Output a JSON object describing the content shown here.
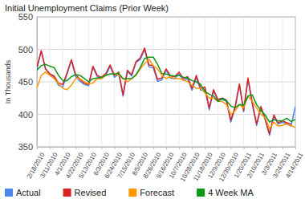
{
  "chart_data": {
    "type": "line",
    "title": "Initial Unemployment Claims (Prior Week)",
    "ylabel": "In Thousands",
    "categories": [
      "2/18/2010",
      null,
      null,
      "3/11/2010",
      null,
      null,
      "4/1/2010",
      null,
      null,
      "4/22/2010",
      null,
      null,
      "5/13/2010",
      null,
      null,
      "6/3/2010",
      null,
      null,
      "6/24/2010",
      null,
      null,
      "7/15/2010",
      null,
      null,
      "8/5/2010",
      null,
      null,
      "8/26/2010",
      null,
      null,
      "9/16/2010",
      null,
      null,
      "10/7/2010",
      null,
      null,
      "10/28/2010",
      null,
      null,
      "11/18/2010",
      null,
      null,
      "12/9/2010",
      null,
      null,
      "12/30/2010",
      null,
      null,
      "1/20/2011",
      null,
      null,
      "2/10/2011",
      null,
      null,
      "3/3/2011",
      null,
      null,
      "3/24/2011",
      null,
      null,
      "4/14/2011"
    ],
    "series": [
      {
        "name": "Actual",
        "color": "#4a86e8",
        "values": [
          470,
          497,
          470,
          462,
          457,
          445,
          442,
          462,
          483,
          458,
          451,
          446,
          444,
          472,
          458,
          455,
          460,
          474,
          457,
          462,
          428,
          466,
          459,
          480,
          484,
          500,
          473,
          472,
          451,
          453,
          468,
          456,
          455,
          462,
          452,
          455,
          437,
          457,
          437,
          439,
          407,
          436,
          421,
          423,
          420,
          388,
          409,
          445,
          404,
          454,
          415,
          383,
          410,
          391,
          368,
          397,
          385,
          388,
          385,
          382,
          412
        ]
      },
      {
        "name": "Revised",
        "color": "#dd2222",
        "values": [
          473,
          498,
          470,
          462,
          459,
          448,
          446,
          464,
          484,
          461,
          454,
          448,
          446,
          474,
          460,
          457,
          463,
          476,
          460,
          465,
          430,
          468,
          461,
          481,
          487,
          502,
          476,
          475,
          454,
          456,
          470,
          459,
          458,
          465,
          455,
          458,
          440,
          460,
          440,
          442,
          410,
          438,
          423,
          425,
          422,
          391,
          411,
          447,
          406,
          456,
          418,
          385,
          412,
          393,
          370,
          399,
          387,
          390,
          387,
          385,
          null
        ]
      },
      {
        "name": "Forecast",
        "color": "#ff9900",
        "values": [
          440,
          460,
          465,
          460,
          455,
          448,
          440,
          438,
          445,
          455,
          455,
          450,
          447,
          448,
          455,
          455,
          460,
          462,
          462,
          460,
          455,
          450,
          455,
          460,
          470,
          478,
          485,
          475,
          470,
          460,
          455,
          458,
          455,
          455,
          453,
          450,
          445,
          440,
          440,
          433,
          425,
          425,
          420,
          420,
          415,
          400,
          405,
          415,
          410,
          428,
          420,
          410,
          400,
          395,
          378,
          388,
          382,
          383,
          385,
          383,
          380
        ]
      },
      {
        "name": "4 Week MA",
        "color": "#109618",
        "values": [
          468,
          475,
          477,
          474,
          472,
          460,
          452,
          452,
          458,
          461,
          460,
          455,
          450,
          455,
          456,
          457,
          460,
          462,
          462,
          463,
          455,
          455,
          455,
          461,
          472,
          486,
          488,
          488,
          477,
          463,
          462,
          460,
          459,
          460,
          457,
          456,
          452,
          450,
          446,
          435,
          431,
          428,
          420,
          425,
          421,
          413,
          410,
          415,
          414,
          428,
          430,
          415,
          406,
          399,
          388,
          392,
          390,
          390,
          394,
          389,
          392
        ]
      }
    ],
    "ylim": [
      350,
      550
    ],
    "yticks": [
      350,
      400,
      450,
      500,
      550
    ],
    "grid": true,
    "legend": "bottom"
  }
}
